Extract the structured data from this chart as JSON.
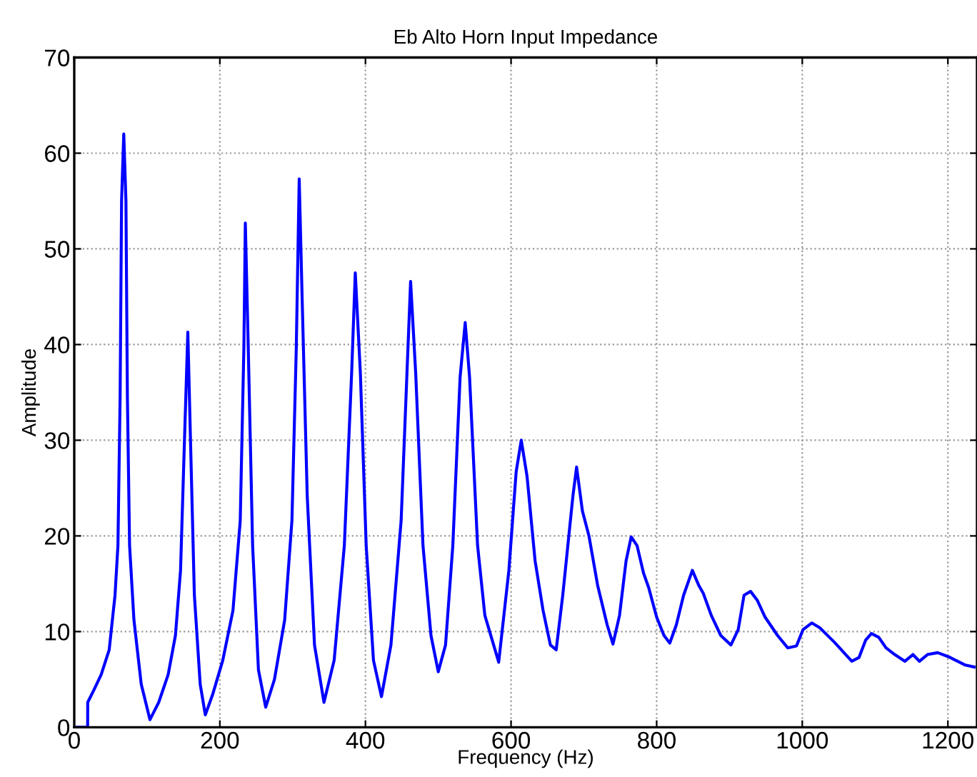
{
  "chart_data": {
    "type": "line",
    "title": "Eb Alto Horn Input Impedance",
    "xlabel": "Frequency (Hz)",
    "ylabel": "Amplitude",
    "xlim": [
      0,
      1240
    ],
    "ylim": [
      0,
      70
    ],
    "xticks": [
      0,
      200,
      400,
      600,
      800,
      1000,
      1200
    ],
    "yticks": [
      0,
      10,
      20,
      30,
      40,
      50,
      60,
      70
    ],
    "grid": true,
    "line_style": "solid",
    "marker": "none",
    "series": [
      {
        "color": "#0000ff",
        "x": [
          0,
          18.4,
          18.5,
          27,
          37,
          48,
          56,
          60,
          63,
          65,
          68,
          71,
          73,
          76,
          82,
          92,
          104,
          116,
          129,
          139,
          146,
          151,
          156,
          160,
          165,
          173,
          180,
          190,
          204,
          218,
          228,
          233,
          235,
          239,
          245,
          253,
          263,
          275,
          289,
          299,
          305,
          309,
          313,
          320,
          330,
          343,
          357,
          371,
          381,
          386,
          393,
          401,
          411,
          422,
          435,
          449,
          457,
          462,
          469,
          479,
          490,
          500,
          510,
          520,
          530,
          537,
          543,
          554,
          564,
          578,
          583,
          597,
          607,
          614,
          622,
          633,
          644,
          654,
          662,
          671,
          685,
          690,
          698,
          707,
          719,
          732,
          740,
          749,
          758,
          765,
          773,
          782,
          789,
          800,
          810,
          818,
          827,
          837,
          849,
          858,
          864,
          875,
          888,
          902,
          912,
          920,
          929,
          938,
          949,
          966,
          980,
          992,
          1001,
          1013,
          1024,
          1044,
          1068,
          1078,
          1087,
          1095,
          1105,
          1115,
          1127,
          1141,
          1152,
          1161,
          1172,
          1186,
          1203,
          1224,
          1236
        ],
        "values": [
          0,
          0,
          2.6,
          3.9,
          5.5,
          8.1,
          13.8,
          19,
          34.5,
          55,
          62,
          55,
          34.5,
          19,
          11.2,
          4.5,
          0.8,
          2.6,
          5.5,
          9.6,
          16.4,
          29,
          41.3,
          29,
          13.8,
          4.5,
          1.3,
          3.4,
          7,
          12.2,
          21.6,
          39.7,
          52.7,
          39.7,
          19,
          6,
          2.1,
          5,
          11.2,
          21.6,
          39.7,
          57.3,
          44.9,
          24.2,
          8.6,
          2.6,
          7,
          19,
          37,
          47.5,
          37,
          19,
          7,
          3.2,
          8.6,
          21.6,
          37,
          46.6,
          37,
          19,
          9.6,
          5.8,
          8.6,
          19,
          36.6,
          42.3,
          36.6,
          19,
          11.7,
          8.1,
          6.8,
          16.4,
          26.7,
          30,
          26.2,
          17.4,
          12.2,
          8.6,
          8.1,
          13.8,
          24.2,
          27.2,
          22.6,
          20,
          14.8,
          10.7,
          8.7,
          11.7,
          17.4,
          19.9,
          19,
          16.1,
          14.6,
          11.5,
          9.6,
          8.8,
          10.7,
          13.8,
          16.4,
          14.8,
          14,
          11.7,
          9.6,
          8.6,
          10.2,
          13.8,
          14.2,
          13.3,
          11.5,
          9.6,
          8.3,
          8.5,
          10.2,
          10.9,
          10.4,
          8.9,
          6.9,
          7.3,
          9.1,
          9.8,
          9.4,
          8.3,
          7.6,
          6.9,
          7.6,
          6.9,
          7.6,
          7.8,
          7.3,
          6.5,
          6.3
        ]
      }
    ]
  }
}
